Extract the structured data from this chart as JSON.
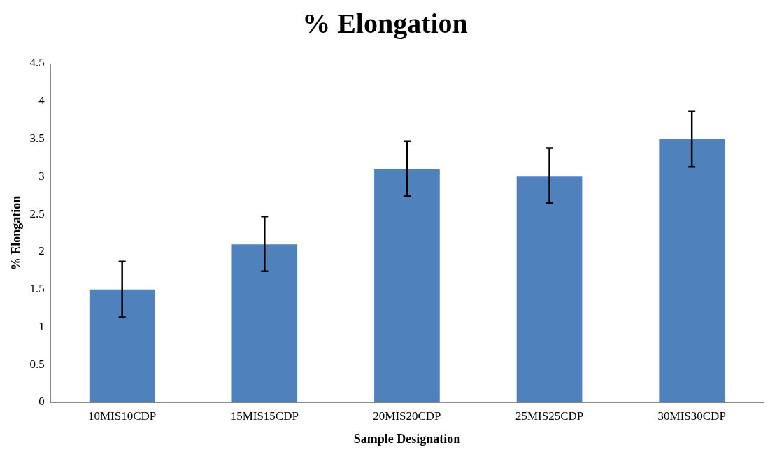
{
  "chart_data": {
    "type": "bar",
    "title": "% Elongation",
    "xlabel": "Sample Designation",
    "ylabel": "% Elongation",
    "categories": [
      "10MIS10CDP",
      "15MIS15CDP",
      "20MIS20CDP",
      "25MIS25CDP",
      "30MIS30CDP"
    ],
    "values": [
      1.5,
      2.1,
      3.1,
      3.0,
      3.5
    ],
    "errors": [
      [
        1.13,
        1.87
      ],
      [
        1.74,
        2.47
      ],
      [
        2.74,
        3.47
      ],
      [
        2.65,
        3.38
      ],
      [
        3.13,
        3.87
      ]
    ],
    "color": "#4f81bd",
    "ylim": [
      0,
      4.5
    ],
    "yticks": [
      0,
      0.5,
      1,
      1.5,
      2,
      2.5,
      3,
      3.5,
      4,
      4.5
    ],
    "grid": false,
    "legend": false
  }
}
